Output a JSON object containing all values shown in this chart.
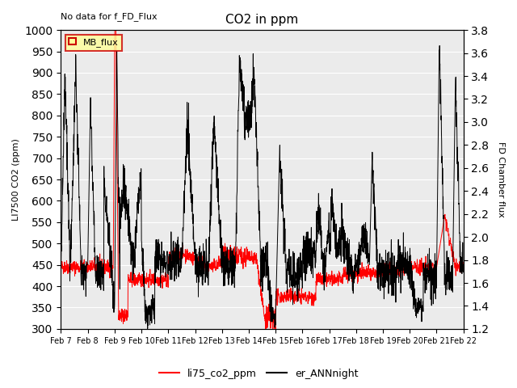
{
  "title": "CO2 in ppm",
  "no_data_text": "No data for f_FD_Flux",
  "ylabel_left": "LI7500 CO2 (ppm)",
  "ylabel_right": "FD Chamber flux",
  "ylim_left": [
    300,
    1000
  ],
  "ylim_right": [
    1.2,
    3.8
  ],
  "yticks_left": [
    300,
    350,
    400,
    450,
    500,
    550,
    600,
    650,
    700,
    750,
    800,
    850,
    900,
    950,
    1000
  ],
  "yticks_right": [
    1.2,
    1.4,
    1.6,
    1.8,
    2.0,
    2.2,
    2.4,
    2.6,
    2.8,
    3.0,
    3.2,
    3.4,
    3.6,
    3.8
  ],
  "xtick_labels": [
    "Feb 7",
    "Feb 8",
    "Feb 9",
    "Feb 10",
    "Feb 11",
    "Feb 12",
    "Feb 13",
    "Feb 14",
    "Feb 15",
    "Feb 16",
    "Feb 17",
    "Feb 18",
    "Feb 19",
    "Feb 20",
    "Feb 21",
    "Feb 22"
  ],
  "line1_color": "#ff0000",
  "line2_color": "#000000",
  "legend_label1": "li75_co2_ppm",
  "legend_label2": "er_ANNnight",
  "legend_box_color": "#ffff99",
  "legend_box_label": "MB_flux",
  "legend_box_edge": "#cc0000",
  "bg_color": "#ebebeb",
  "grid_color": "#ffffff"
}
